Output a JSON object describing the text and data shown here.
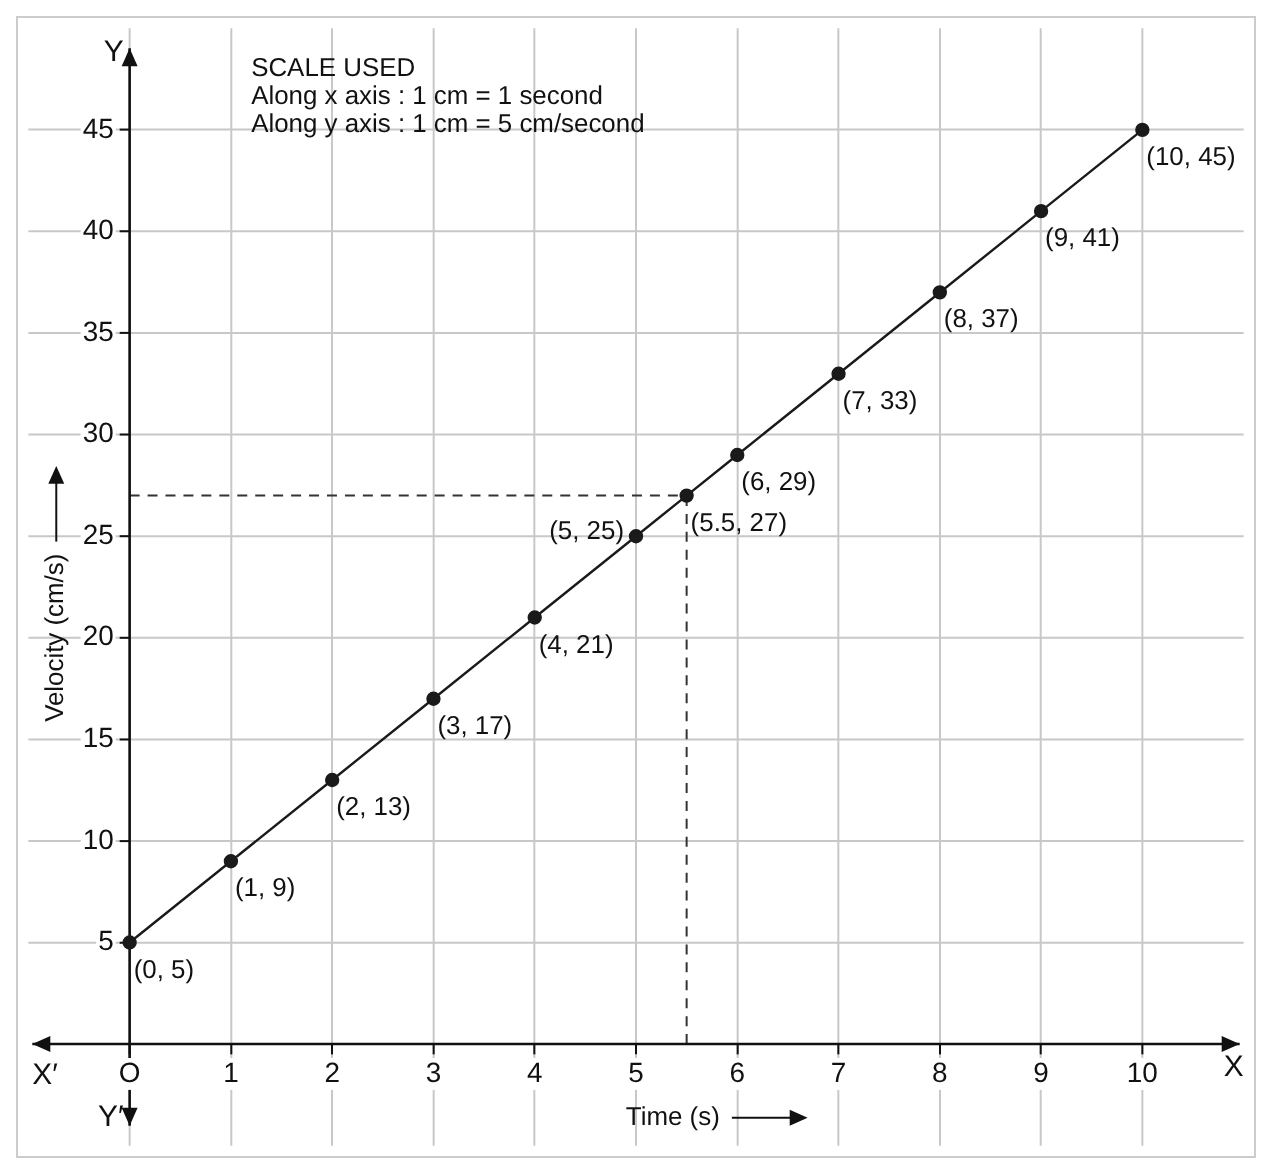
{
  "chart_data": {
    "type": "line",
    "xlabel": "Time (s)",
    "ylabel": "Velocity (cm/s)",
    "annotations": [
      "SCALE USED",
      "Along x axis : 1 cm = 1 second",
      "Along y axis : 1 cm = 5 cm/second",
      "X′",
      "X",
      "Y",
      "Y′"
    ],
    "x": [
      0,
      1,
      2,
      3,
      4,
      5,
      5.5,
      6,
      7,
      8,
      9,
      10
    ],
    "series": [
      {
        "color": "#1a1a1a",
        "values": [
          5,
          9,
          13,
          17,
          21,
          25,
          27,
          29,
          33,
          37,
          41,
          45
        ],
        "value_labels": [
          "(0, 5)",
          "(1, 9)",
          "(2, 13)",
          "(3, 17)",
          "(4, 21)",
          "(5, 25)",
          "(5.5, 27)",
          "(6, 29)",
          "(7, 33)",
          "(8, 37)",
          "(9, 41)",
          "(10, 45)"
        ]
      }
    ],
    "xlim": [
      -1,
      11
    ],
    "ylim": [
      -5,
      50
    ],
    "xticks": [
      {
        "value": 0,
        "label": "O"
      },
      1,
      2,
      3,
      4,
      5,
      6,
      7,
      8,
      9,
      10
    ],
    "yticks": [
      5,
      10,
      15,
      20,
      25,
      30,
      35,
      40,
      45
    ],
    "ref_lines": [
      {
        "axis": "x",
        "value": 5.5,
        "line_style": "dashed"
      },
      {
        "axis": "y",
        "value": 27,
        "line_style": "dashed"
      }
    ],
    "grid": true,
    "marker": "circle",
    "line_style": "solid",
    "legend": false
  }
}
